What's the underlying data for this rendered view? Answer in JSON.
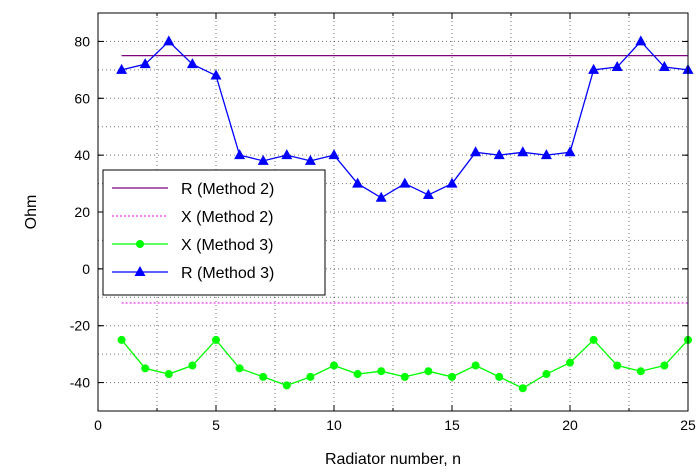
{
  "chart_data": {
    "type": "line",
    "xlabel": "Radiator number, n",
    "ylabel": "Ohm",
    "xlim": [
      0,
      25
    ],
    "ylim": [
      -50,
      90
    ],
    "x_ticks": [
      0,
      5,
      10,
      15,
      20,
      25
    ],
    "y_ticks": [
      -40,
      -20,
      0,
      20,
      40,
      60,
      80
    ],
    "x_tick_labels": [
      "0",
      "5",
      "10",
      "15",
      "20",
      "25"
    ],
    "y_tick_labels": [
      "-40",
      "-20",
      "0",
      "20",
      "40",
      "60",
      "80"
    ],
    "grid": true,
    "legend_position": "left",
    "x": [
      1,
      2,
      3,
      4,
      5,
      6,
      7,
      8,
      9,
      10,
      11,
      12,
      13,
      14,
      15,
      16,
      17,
      18,
      19,
      20,
      21,
      22,
      23,
      24,
      25
    ],
    "series": [
      {
        "name": "R (Method 2)",
        "color": "#800080",
        "style": "solid",
        "marker": "none",
        "values": [
          75,
          75,
          75,
          75,
          75,
          75,
          75,
          75,
          75,
          75,
          75,
          75,
          75,
          75,
          75,
          75,
          75,
          75,
          75,
          75,
          75,
          75,
          75,
          75,
          75
        ]
      },
      {
        "name": "X (Method 2)",
        "color": "#ff00ff",
        "style": "dotted",
        "marker": "none",
        "values": [
          -12,
          -12,
          -12,
          -12,
          -12,
          -12,
          -12,
          -12,
          -12,
          -12,
          -12,
          -12,
          -12,
          -12,
          -12,
          -12,
          -12,
          -12,
          -12,
          -12,
          -12,
          -12,
          -12,
          -12,
          -12
        ]
      },
      {
        "name": "X (Method 3)",
        "color": "#00ff00",
        "style": "solid",
        "marker": "circle",
        "values": [
          -25,
          -35,
          -37,
          -34,
          -25,
          -35,
          -38,
          -41,
          -38,
          -34,
          -37,
          -36,
          -38,
          -36,
          -38,
          -34,
          -38,
          -42,
          -37,
          -33,
          -25,
          -34,
          -36,
          -34,
          -25
        ]
      },
      {
        "name": "R (Method 3)",
        "color": "#0000ff",
        "style": "solid",
        "marker": "triangle",
        "values": [
          70,
          72,
          80,
          72,
          68,
          40,
          38,
          40,
          38,
          40,
          30,
          25,
          30,
          26,
          30,
          41,
          40,
          41,
          40,
          41,
          70,
          71,
          80,
          71,
          70
        ]
      }
    ]
  }
}
